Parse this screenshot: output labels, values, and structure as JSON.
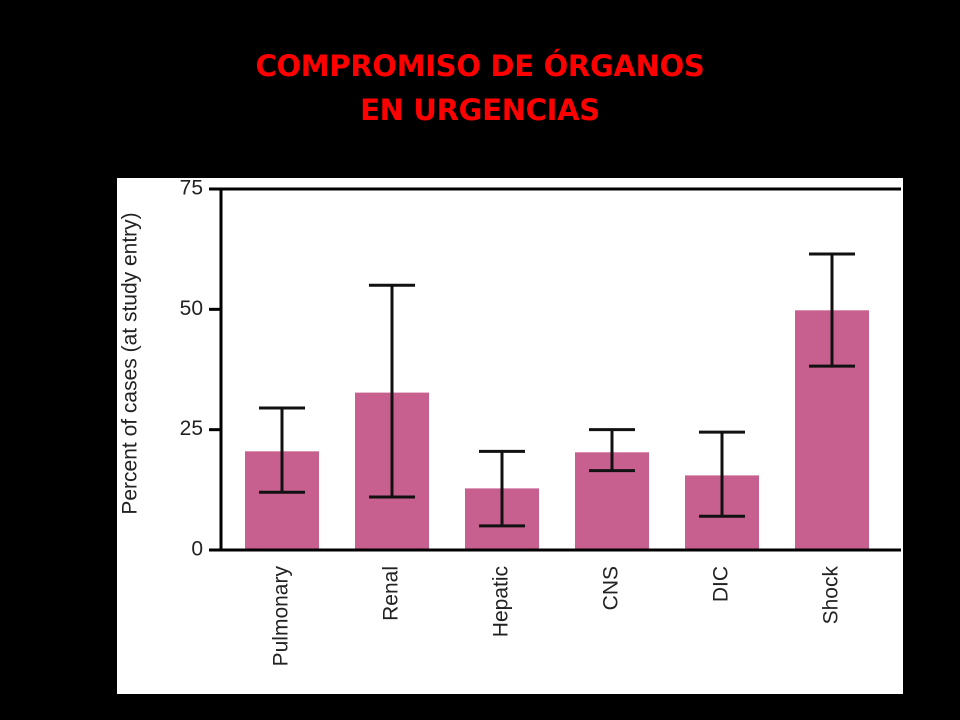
{
  "slide": {
    "title_line1": "COMPROMISO DE ÓRGANOS",
    "title_line2": "EN URGENCIAS"
  },
  "colors": {
    "background": "#000000",
    "title": "#ff0000",
    "bar": "#c7608f",
    "axis": "#000000"
  },
  "chart_data": {
    "type": "bar",
    "title": "",
    "xlabel": "",
    "ylabel": "Percent of cases (at study entry)",
    "categories": [
      "Pulmonary",
      "Renal",
      "Hepatic",
      "CNS",
      "DIC",
      "Shock"
    ],
    "values": [
      20.5,
      32.7,
      12.8,
      20.3,
      15.5,
      49.8
    ],
    "error_low": [
      12,
      11,
      5,
      16.5,
      7,
      38.2
    ],
    "error_high": [
      29.5,
      55,
      20.5,
      25,
      24.5,
      61.5
    ],
    "ylim": [
      0,
      75
    ],
    "yticks": [
      0,
      25,
      50,
      75
    ],
    "grid": false,
    "legend": "none"
  }
}
